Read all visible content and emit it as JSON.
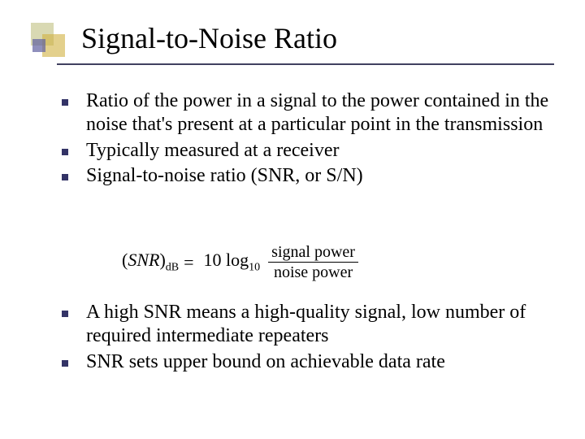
{
  "title": "Signal-to-Noise Ratio",
  "bullets1": [
    "Ratio of the power in a signal to the power contained in the noise that's present at a particular point in the transmission",
    "Typically measured at a receiver",
    "Signal-to-noise ratio (SNR, or S/N)"
  ],
  "formula": {
    "lhs_open": "(",
    "lhs_var": "SNR",
    "lhs_close": ")",
    "lhs_sub": "dB",
    "eq": "=",
    "coef": "10 log",
    "coef_sub": "10",
    "numerator": "signal power",
    "denominator": "noise power"
  },
  "bullets2": [
    "A high SNR means a high-quality signal, low number of required intermediate repeaters",
    "SNR sets upper bound on achievable data rate"
  ],
  "colors": {
    "bullet": "#333366",
    "underline": "#404060",
    "text": "#000000",
    "background": "#ffffff"
  }
}
